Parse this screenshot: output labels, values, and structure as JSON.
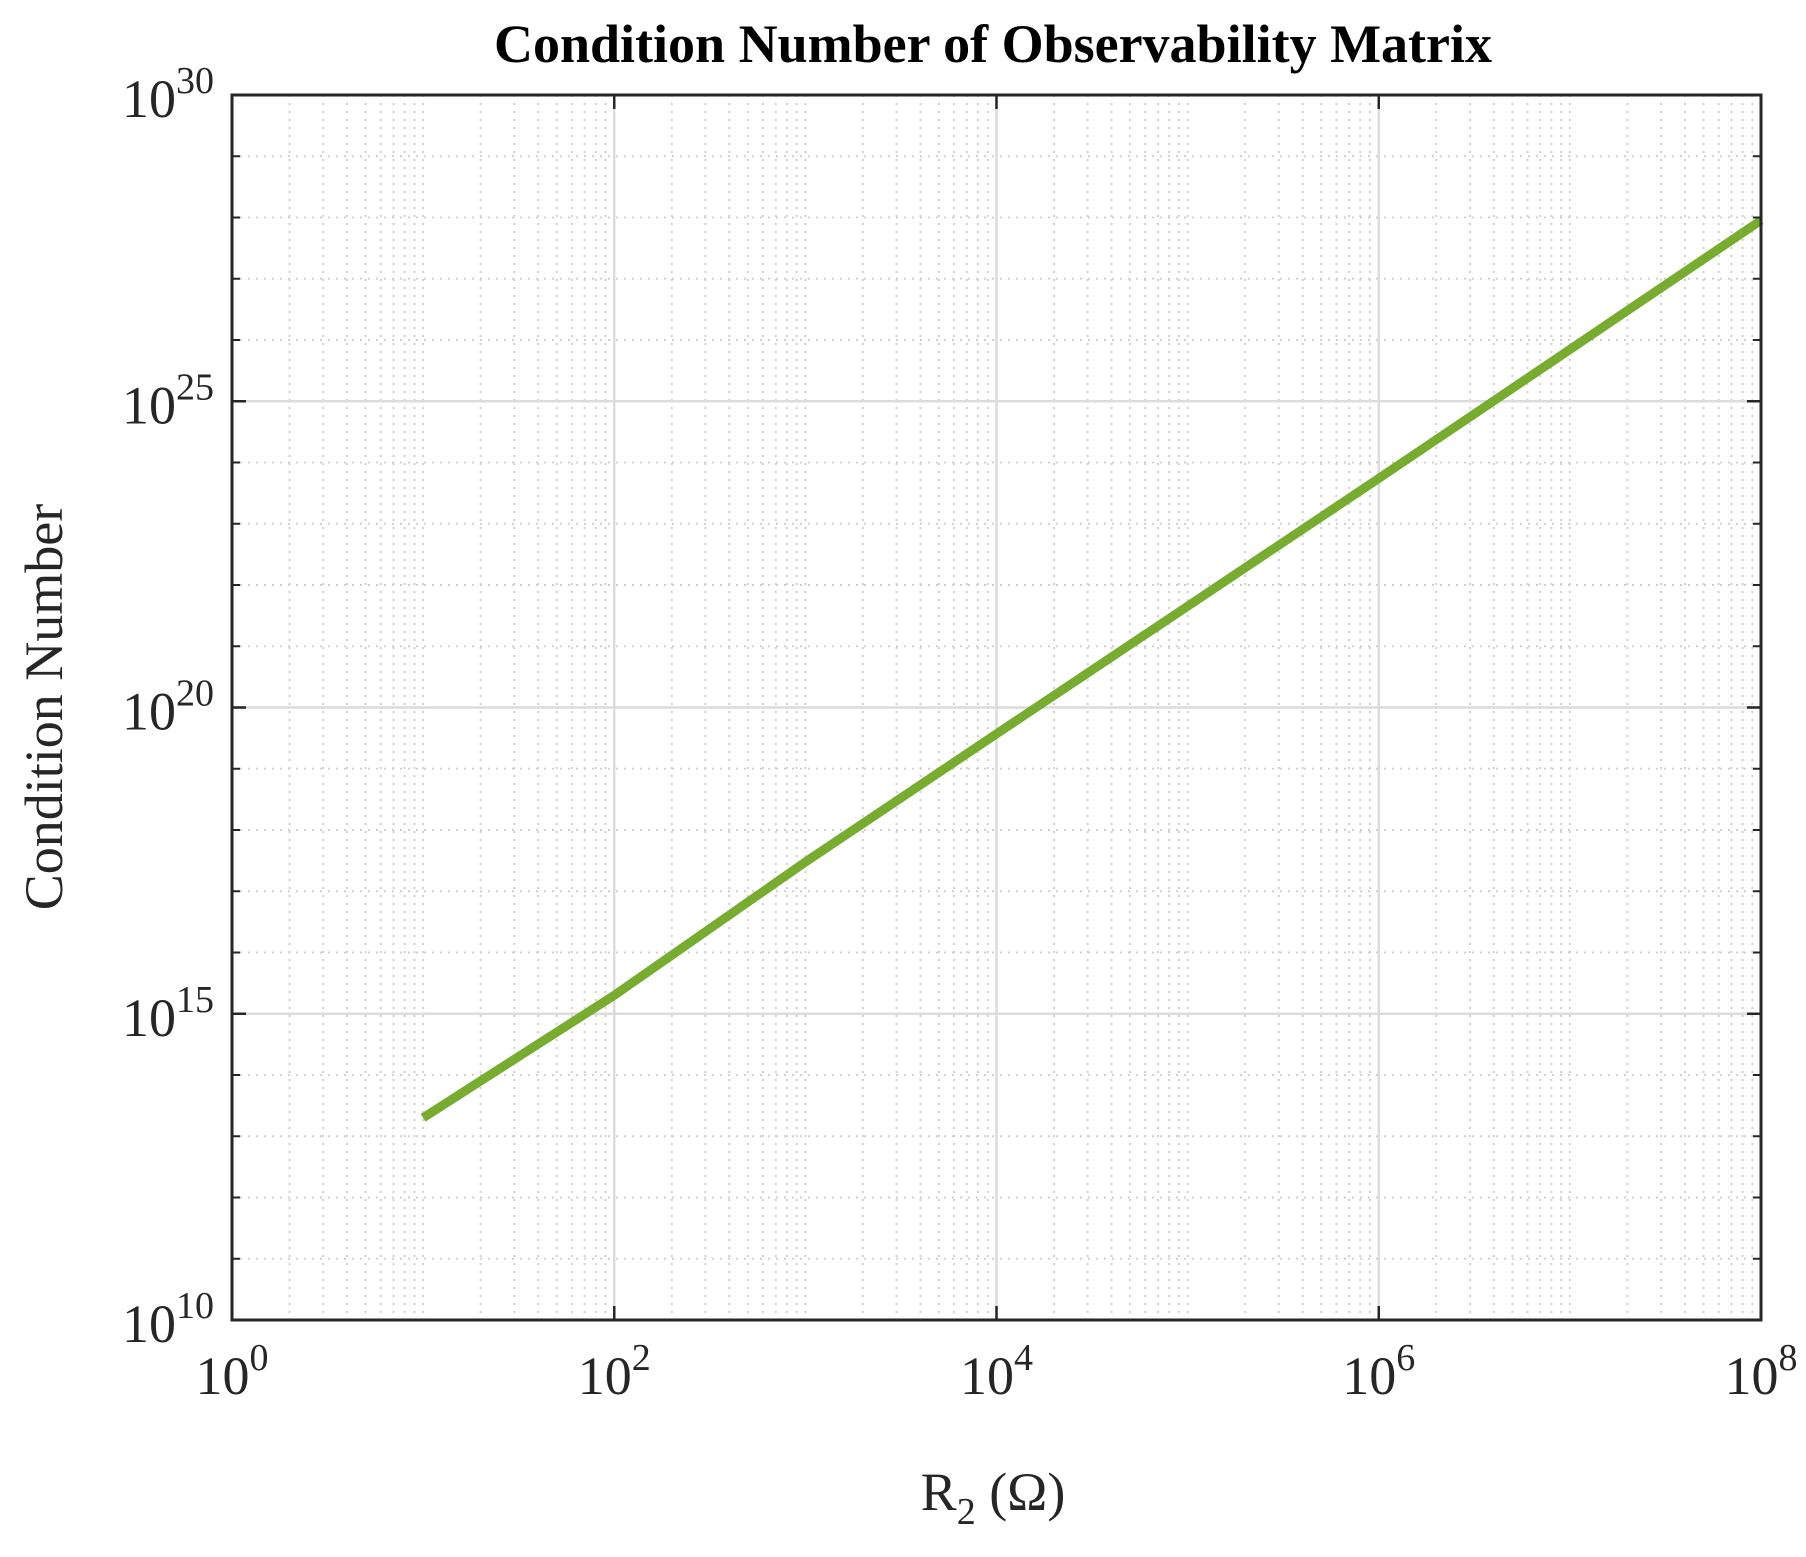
{
  "chart_data": {
    "type": "line",
    "title": "Condition Number of Observability Matrix",
    "xlabel": "R",
    "xlabel_sub": "2",
    "xlabel_unit": "(Ω)",
    "ylabel": "Condition Number",
    "x_scale": "log",
    "y_scale": "log",
    "xlim": [
      1,
      100000000
    ],
    "ylim": [
      10000000000,
      1e+30
    ],
    "x_ticks": [
      {
        "base": "10",
        "exp": "0"
      },
      {
        "base": "10",
        "exp": "2"
      },
      {
        "base": "10",
        "exp": "4"
      },
      {
        "base": "10",
        "exp": "6"
      },
      {
        "base": "10",
        "exp": "8"
      }
    ],
    "y_ticks": [
      {
        "base": "10",
        "exp": "10"
      },
      {
        "base": "10",
        "exp": "15"
      },
      {
        "base": "10",
        "exp": "20"
      },
      {
        "base": "10",
        "exp": "25"
      },
      {
        "base": "10",
        "exp": "30"
      }
    ],
    "grid": true,
    "series": [
      {
        "name": "condition-number",
        "color": "#77AC30",
        "x": [
          10,
          100,
          1000,
          10000,
          100000,
          1000000,
          10000000,
          100000000
        ],
        "y": [
          20000000000000.0,
          2000000000000000.0,
          3e+17,
          3.7e+19,
          4.5e+21,
          5.5e+23,
          7e+25,
          9e+27
        ]
      }
    ]
  },
  "colors": {
    "axis": "#262626",
    "grid": "#dcdcdc",
    "line": "#77AC30"
  }
}
